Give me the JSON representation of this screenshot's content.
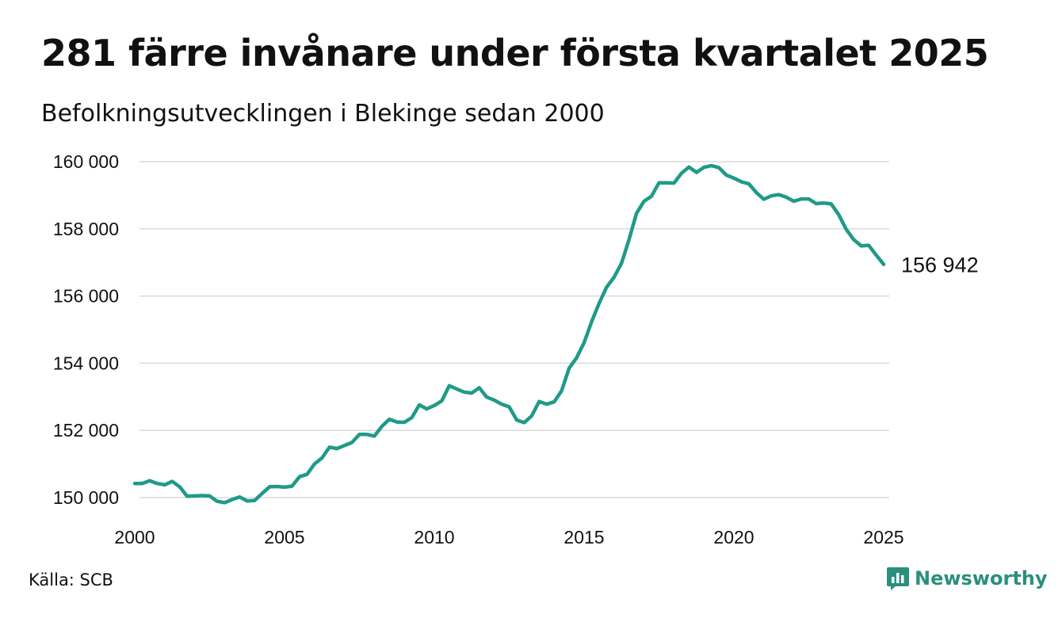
{
  "title": "281 färre invånare under första kvartalet 2025",
  "subtitle": "Befolkningsutvecklingen i Blekinge sedan 2000",
  "source": "Källa: SCB",
  "brand": {
    "name": "Newsworthy",
    "icon": "newsworthy-logo-icon",
    "color": "#2a8f7c"
  },
  "chart_data": {
    "type": "line",
    "title": "281 färre invånare under första kvartalet 2025",
    "subtitle": "Befolkningsutvecklingen i Blekinge sedan 2000",
    "xlabel": "",
    "ylabel": "",
    "xlim": [
      2000,
      2025.3
    ],
    "ylim": [
      149500,
      160300
    ],
    "x_ticks": [
      2000,
      2005,
      2010,
      2015,
      2020,
      2025
    ],
    "y_ticks": [
      150000,
      152000,
      154000,
      156000,
      158000,
      160000
    ],
    "y_tick_labels": [
      "150 000",
      "152 000",
      "154 000",
      "156 000",
      "158 000",
      "160 000"
    ],
    "grid": true,
    "line_color": "#1f9a88",
    "end_label": "156 942",
    "series": [
      {
        "x": [
          2000.0,
          2000.25,
          2000.5,
          2000.75,
          2001.0,
          2001.25,
          2001.5,
          2001.75,
          2002.0,
          2002.25,
          2002.5,
          2002.75,
          2003.0,
          2003.25,
          2003.5,
          2003.75,
          2004.0,
          2004.25,
          2004.5,
          2004.75,
          2005.0,
          2005.25,
          2005.5,
          2005.75,
          2006.0,
          2006.25,
          2006.5,
          2006.75,
          2007.0,
          2007.25,
          2007.5,
          2007.75,
          2008.0,
          2008.25,
          2008.5,
          2008.75,
          2009.0,
          2009.25,
          2009.5,
          2009.75,
          2010.0,
          2010.25,
          2010.5,
          2010.75,
          2011.0,
          2011.25,
          2011.5,
          2011.75,
          2012.0,
          2012.25,
          2012.5,
          2012.75,
          2013.0,
          2013.25,
          2013.5,
          2013.75,
          2014.0,
          2014.25,
          2014.5,
          2014.75,
          2015.0,
          2015.25,
          2015.5,
          2015.75,
          2016.0,
          2016.25,
          2016.5,
          2016.75,
          2017.0,
          2017.25,
          2017.5,
          2017.75,
          2018.0,
          2018.25,
          2018.5,
          2018.75,
          2019.0,
          2019.25,
          2019.5,
          2019.75,
          2020.0,
          2020.25,
          2020.5,
          2020.75,
          2021.0,
          2021.25,
          2021.5,
          2021.75,
          2022.0,
          2022.25,
          2022.5,
          2022.75,
          2023.0,
          2023.25,
          2023.5,
          2023.75,
          2024.0,
          2024.25,
          2024.5,
          2024.75,
          2025.0
        ],
        "values": [
          150420,
          150420,
          150500,
          150420,
          150380,
          150480,
          150320,
          150040,
          150050,
          150060,
          150050,
          149890,
          149850,
          149940,
          150020,
          149900,
          149910,
          150120,
          150320,
          150330,
          150310,
          150340,
          150620,
          150690,
          151000,
          151180,
          151500,
          151460,
          151550,
          151640,
          151880,
          151880,
          151830,
          152120,
          152330,
          152250,
          152240,
          152380,
          152760,
          152640,
          152740,
          152880,
          153330,
          153230,
          153140,
          153110,
          153270,
          152990,
          152900,
          152780,
          152700,
          152310,
          152230,
          152430,
          152860,
          152780,
          152850,
          153180,
          153850,
          154160,
          154610,
          155230,
          155780,
          156260,
          156560,
          156980,
          157680,
          158460,
          158820,
          158970,
          159370,
          159370,
          159360,
          159650,
          159840,
          159680,
          159830,
          159880,
          159820,
          159600,
          159510,
          159400,
          159340,
          159080,
          158880,
          158980,
          159020,
          158940,
          158820,
          158890,
          158890,
          158750,
          158770,
          158740,
          158420,
          157980,
          157680,
          157490,
          157510,
          157220,
          156942
        ]
      }
    ]
  }
}
